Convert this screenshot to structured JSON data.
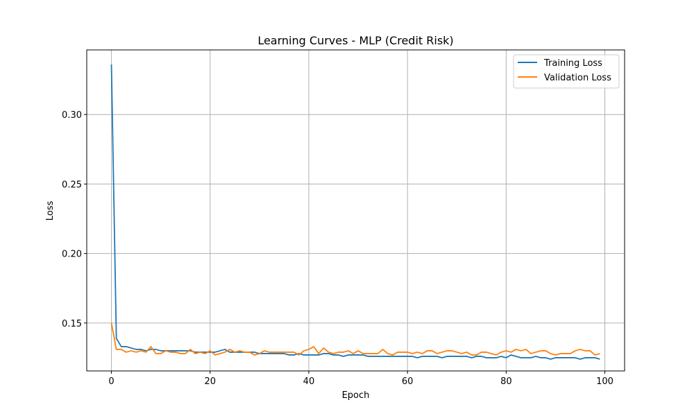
{
  "chart_data": {
    "type": "line",
    "title": "Learning Curves - MLP (Credit Risk)",
    "xlabel": "Epoch",
    "ylabel": "Loss",
    "xlim": [
      -5,
      104
    ],
    "ylim": [
      0.1155,
      0.3465
    ],
    "xticks": [
      0,
      20,
      40,
      60,
      80,
      100
    ],
    "xtick_labels": [
      "0",
      "20",
      "40",
      "60",
      "80",
      "100"
    ],
    "yticks": [
      0.15,
      0.2,
      0.25,
      0.3
    ],
    "ytick_labels": [
      "0.15",
      "0.20",
      "0.25",
      "0.30"
    ],
    "grid": true,
    "legend_position": "top-right",
    "x": [
      0,
      1,
      2,
      3,
      4,
      5,
      6,
      7,
      8,
      9,
      10,
      11,
      12,
      13,
      14,
      15,
      16,
      17,
      18,
      19,
      20,
      21,
      22,
      23,
      24,
      25,
      26,
      27,
      28,
      29,
      30,
      31,
      32,
      33,
      34,
      35,
      36,
      37,
      38,
      39,
      40,
      41,
      42,
      43,
      44,
      45,
      46,
      47,
      48,
      49,
      50,
      51,
      52,
      53,
      54,
      55,
      56,
      57,
      58,
      59,
      60,
      61,
      62,
      63,
      64,
      65,
      66,
      67,
      68,
      69,
      70,
      71,
      72,
      73,
      74,
      75,
      76,
      77,
      78,
      79,
      80,
      81,
      82,
      83,
      84,
      85,
      86,
      87,
      88,
      89,
      90,
      91,
      92,
      93,
      94,
      95,
      96,
      97,
      98,
      99
    ],
    "series": [
      {
        "name": "Training Loss",
        "color": "#1f77b4",
        "values": [
          0.336,
          0.139,
          0.133,
          0.133,
          0.132,
          0.131,
          0.131,
          0.13,
          0.131,
          0.131,
          0.13,
          0.13,
          0.13,
          0.13,
          0.13,
          0.13,
          0.13,
          0.129,
          0.129,
          0.129,
          0.129,
          0.129,
          0.13,
          0.131,
          0.129,
          0.129,
          0.129,
          0.129,
          0.129,
          0.129,
          0.128,
          0.128,
          0.128,
          0.128,
          0.128,
          0.128,
          0.127,
          0.127,
          0.128,
          0.127,
          0.127,
          0.127,
          0.127,
          0.128,
          0.128,
          0.127,
          0.127,
          0.126,
          0.127,
          0.127,
          0.127,
          0.127,
          0.126,
          0.126,
          0.126,
          0.126,
          0.126,
          0.126,
          0.126,
          0.126,
          0.126,
          0.126,
          0.125,
          0.126,
          0.126,
          0.126,
          0.126,
          0.125,
          0.126,
          0.126,
          0.126,
          0.126,
          0.126,
          0.125,
          0.126,
          0.126,
          0.125,
          0.125,
          0.125,
          0.126,
          0.125,
          0.127,
          0.126,
          0.125,
          0.125,
          0.125,
          0.126,
          0.125,
          0.125,
          0.124,
          0.125,
          0.125,
          0.125,
          0.125,
          0.125,
          0.124,
          0.125,
          0.125,
          0.125,
          0.124
        ]
      },
      {
        "name": "Validation Loss",
        "color": "#ff7f0e",
        "values": [
          0.15,
          0.131,
          0.131,
          0.129,
          0.13,
          0.129,
          0.13,
          0.129,
          0.133,
          0.128,
          0.128,
          0.13,
          0.129,
          0.129,
          0.128,
          0.128,
          0.131,
          0.128,
          0.129,
          0.128,
          0.13,
          0.127,
          0.128,
          0.129,
          0.131,
          0.129,
          0.13,
          0.129,
          0.129,
          0.127,
          0.128,
          0.13,
          0.129,
          0.129,
          0.129,
          0.129,
          0.129,
          0.129,
          0.127,
          0.13,
          0.131,
          0.133,
          0.128,
          0.132,
          0.129,
          0.128,
          0.129,
          0.129,
          0.13,
          0.128,
          0.13,
          0.128,
          0.128,
          0.128,
          0.128,
          0.131,
          0.128,
          0.127,
          0.129,
          0.129,
          0.129,
          0.128,
          0.129,
          0.128,
          0.13,
          0.13,
          0.128,
          0.129,
          0.13,
          0.13,
          0.129,
          0.128,
          0.129,
          0.127,
          0.127,
          0.129,
          0.129,
          0.128,
          0.127,
          0.129,
          0.13,
          0.129,
          0.131,
          0.13,
          0.131,
          0.128,
          0.129,
          0.13,
          0.13,
          0.128,
          0.127,
          0.128,
          0.128,
          0.128,
          0.13,
          0.131,
          0.13,
          0.13,
          0.127,
          0.128
        ]
      }
    ]
  }
}
